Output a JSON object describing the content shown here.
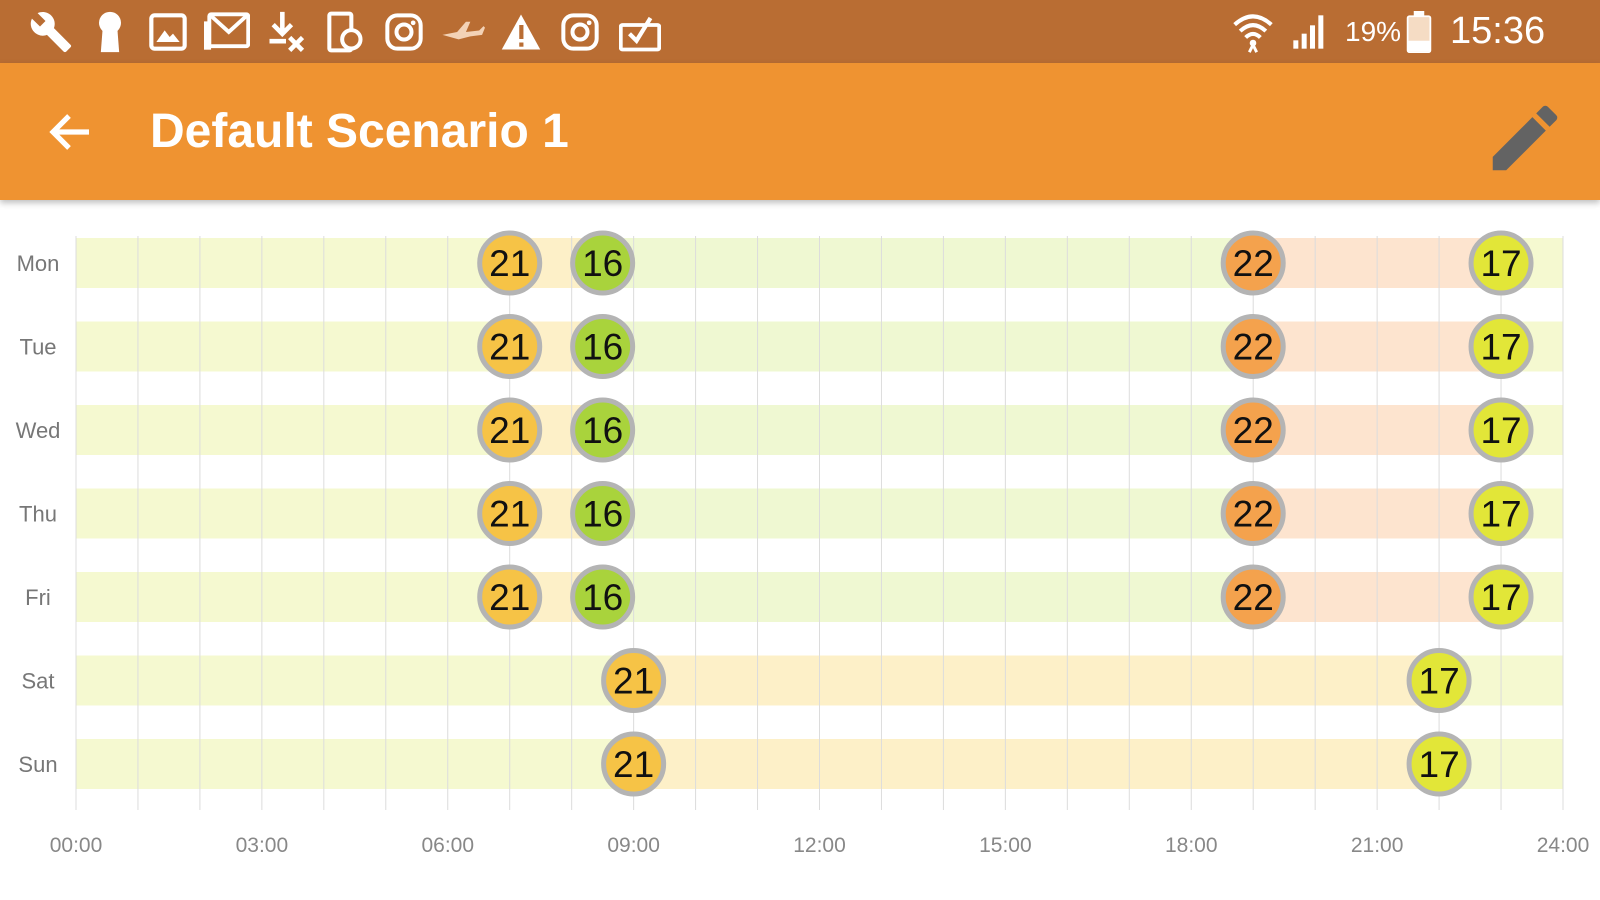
{
  "status_bar": {
    "battery_percent": "19%",
    "time": "15:36",
    "left_icons": [
      "wrench-icon",
      "keyhole-icon",
      "image-icon",
      "mail-icon",
      "download-cancel-icon",
      "device-icon",
      "instagram-icon",
      "airplane-icon",
      "warning-icon",
      "instagram-icon",
      "briefcase-icon"
    ],
    "right_icons": [
      "wifi-icon",
      "signal-icon",
      "battery-icon"
    ]
  },
  "app_bar": {
    "title": "Default Scenario 1",
    "back_icon": "back-arrow-icon",
    "edit_icon": "pencil-icon"
  },
  "colors": {
    "status_bar": "#b96d33",
    "app_bar": "#ef9331",
    "t21": "#f6c346",
    "t16": "#a9d33c",
    "t22": "#f4a24d",
    "t17": "#e2e638",
    "seg21": "#fdf0c8",
    "seg16": "#eff8d2",
    "seg22": "#fde4cf",
    "seg17": "#f5f9d0"
  },
  "schedule": {
    "x_min_hours": 0,
    "x_max_hours": 24,
    "tick_labels": [
      "00:00",
      "03:00",
      "06:00",
      "09:00",
      "12:00",
      "15:00",
      "18:00",
      "21:00",
      "24:00"
    ],
    "days": [
      {
        "label": "Mon",
        "points": [
          {
            "time": "07:00",
            "temp": "21"
          },
          {
            "time": "08:30",
            "temp": "16"
          },
          {
            "time": "19:00",
            "temp": "22"
          },
          {
            "time": "23:00",
            "temp": "17"
          }
        ]
      },
      {
        "label": "Tue",
        "points": [
          {
            "time": "07:00",
            "temp": "21"
          },
          {
            "time": "08:30",
            "temp": "16"
          },
          {
            "time": "19:00",
            "temp": "22"
          },
          {
            "time": "23:00",
            "temp": "17"
          }
        ]
      },
      {
        "label": "Wed",
        "points": [
          {
            "time": "07:00",
            "temp": "21"
          },
          {
            "time": "08:30",
            "temp": "16"
          },
          {
            "time": "19:00",
            "temp": "22"
          },
          {
            "time": "23:00",
            "temp": "17"
          }
        ]
      },
      {
        "label": "Thu",
        "points": [
          {
            "time": "07:00",
            "temp": "21"
          },
          {
            "time": "08:30",
            "temp": "16"
          },
          {
            "time": "19:00",
            "temp": "22"
          },
          {
            "time": "23:00",
            "temp": "17"
          }
        ]
      },
      {
        "label": "Fri",
        "points": [
          {
            "time": "07:00",
            "temp": "21"
          },
          {
            "time": "08:30",
            "temp": "16"
          },
          {
            "time": "19:00",
            "temp": "22"
          },
          {
            "time": "23:00",
            "temp": "17"
          }
        ]
      },
      {
        "label": "Sat",
        "points": [
          {
            "time": "09:00",
            "temp": "21"
          },
          {
            "time": "22:00",
            "temp": "17"
          }
        ]
      },
      {
        "label": "Sun",
        "points": [
          {
            "time": "09:00",
            "temp": "21"
          },
          {
            "time": "22:00",
            "temp": "17"
          }
        ]
      }
    ]
  }
}
